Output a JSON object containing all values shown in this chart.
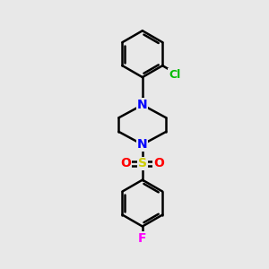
{
  "background_color": "#e8e8e8",
  "bond_color": "#000000",
  "atom_colors": {
    "N": "#0000ff",
    "Cl": "#00bb00",
    "F": "#ff00ff",
    "S": "#cccc00",
    "O": "#ff0000",
    "C": "#000000"
  },
  "bond_width": 1.8,
  "font_size": 9,
  "figsize": [
    3.0,
    3.0
  ],
  "dpi": 100
}
